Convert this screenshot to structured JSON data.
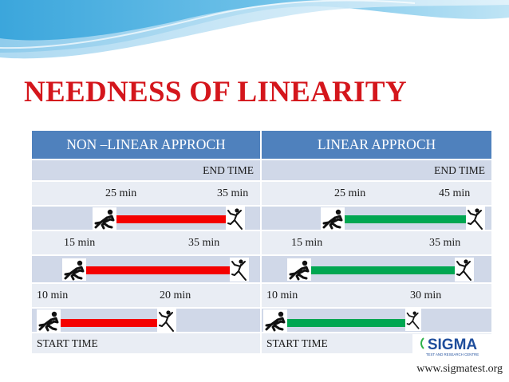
{
  "title": "NEEDNESS OF LINEARITY",
  "columns": {
    "left_header": "NON –LINEAR APPROCH",
    "right_header": "LINEAR APPROCH"
  },
  "end_time_label": "END TIME",
  "start_time_label": "START TIME",
  "rows": {
    "non_linear": [
      {
        "start": "25 min",
        "end": "35 min"
      },
      {
        "start": "15 min",
        "end": "35 min"
      },
      {
        "start": "10 min",
        "end": "20 min"
      }
    ],
    "linear": [
      {
        "start": "25 min",
        "end": "45 min"
      },
      {
        "start": "15 min",
        "end": "35 min"
      },
      {
        "start": "10 min",
        "end": "30 min"
      }
    ]
  },
  "colors": {
    "title": "#d4161c",
    "header": "#4f81bd",
    "row_dark": "#d0d8e8",
    "row_light": "#e9edf4",
    "non_linear_bar": "#f40000",
    "linear_bar": "#00a651"
  },
  "icons": {
    "start_runner": "crouching-runner-icon",
    "finish_runner": "finishing-runner-icon"
  },
  "logo": {
    "text": "SIGMA",
    "tagline": "TEST AND RESEARCH CENTRE"
  },
  "website": "www.sigmatest.org"
}
